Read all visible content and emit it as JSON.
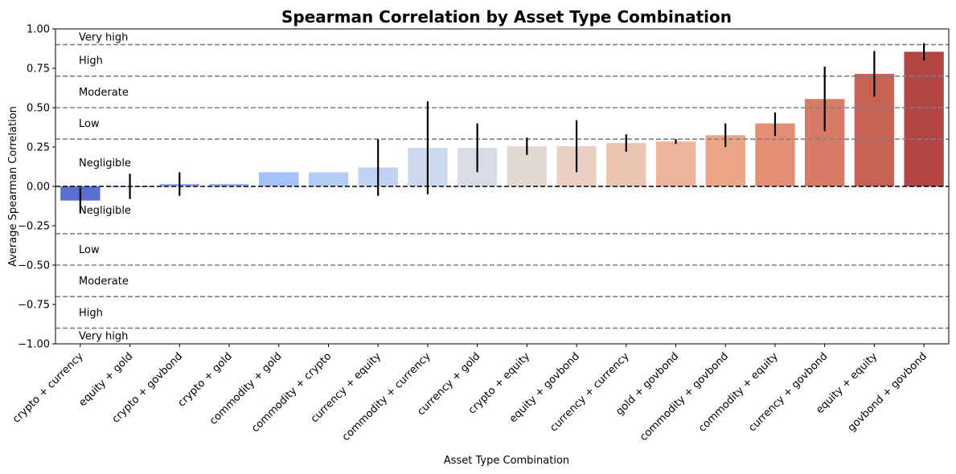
{
  "chart_data": {
    "type": "bar",
    "title": "Spearman Correlation by Asset Type Combination",
    "xlabel": "Asset Type Combination",
    "ylabel": "Average Spearman Correlation",
    "ylim": [
      -1.0,
      1.0
    ],
    "yticks": [
      -1.0,
      -0.75,
      -0.5,
      -0.25,
      0.0,
      0.25,
      0.5,
      0.75,
      1.0
    ],
    "ytick_labels": [
      "−1.00",
      "−0.75",
      "−0.50",
      "−0.25",
      "0.00",
      "0.25",
      "0.50",
      "0.75",
      "1.00"
    ],
    "categories": [
      "crypto + currency",
      "equity + gold",
      "crypto + govbond",
      "crypto + gold",
      "commodity + gold",
      "commodity + crypto",
      "currency + equity",
      "commodity + currency",
      "currency + gold",
      "crypto + equity",
      "equity + govbond",
      "currency + currency",
      "gold + govbond",
      "commodity + govbond",
      "commodity + equity",
      "currency + govbond",
      "equity + equity",
      "govbond + govbond"
    ],
    "values": [
      -0.09,
      0.0,
      0.015,
      0.015,
      0.09,
      0.09,
      0.12,
      0.245,
      0.245,
      0.255,
      0.255,
      0.275,
      0.285,
      0.325,
      0.4,
      0.555,
      0.715,
      0.855
    ],
    "errors_low": [
      -0.17,
      -0.08,
      -0.06,
      0.015,
      0.09,
      0.09,
      -0.06,
      -0.05,
      0.09,
      0.2,
      0.09,
      0.22,
      0.27,
      0.25,
      0.32,
      0.35,
      0.57,
      0.8
    ],
    "errors_high": [
      -0.01,
      0.08,
      0.09,
      0.015,
      0.09,
      0.09,
      0.3,
      0.54,
      0.4,
      0.31,
      0.42,
      0.33,
      0.3,
      0.4,
      0.47,
      0.76,
      0.86,
      0.91
    ],
    "colors": [
      "#5a6fcf",
      "#7393ea",
      "#8aa9f5",
      "#94b3f8",
      "#a4c1f8",
      "#b4cdf5",
      "#c1d3f2",
      "#ccd9ed",
      "#d9dce6",
      "#e4d8d3",
      "#ebcfc2",
      "#ecc5b1",
      "#edb69c",
      "#eba587",
      "#e48e75",
      "#d67b66",
      "#c76354",
      "#b34544"
    ],
    "reference_lines": [
      {
        "y": 0.9,
        "style": "dashed",
        "color": "#808080"
      },
      {
        "y": 0.7,
        "style": "dashed",
        "color": "#808080"
      },
      {
        "y": 0.5,
        "style": "dashed",
        "color": "#808080"
      },
      {
        "y": 0.3,
        "style": "dashed",
        "color": "#808080"
      },
      {
        "y": 0.0,
        "style": "dashed",
        "color": "#000000"
      },
      {
        "y": -0.3,
        "style": "dashed",
        "color": "#808080"
      },
      {
        "y": -0.5,
        "style": "dashed",
        "color": "#808080"
      },
      {
        "y": -0.7,
        "style": "dashed",
        "color": "#808080"
      },
      {
        "y": -0.9,
        "style": "dashed",
        "color": "#808080"
      }
    ],
    "band_labels": [
      {
        "text": "Very high",
        "y": 0.95
      },
      {
        "text": "High",
        "y": 0.8
      },
      {
        "text": "Moderate",
        "y": 0.6
      },
      {
        "text": "Low",
        "y": 0.4
      },
      {
        "text": "Negligible",
        "y": 0.15
      },
      {
        "text": "Negligible",
        "y": -0.15
      },
      {
        "text": "Low",
        "y": -0.4
      },
      {
        "text": "Moderate",
        "y": -0.6
      },
      {
        "text": "High",
        "y": -0.8
      },
      {
        "text": "Very high",
        "y": -0.95
      }
    ],
    "grid": false,
    "legend": "none"
  }
}
